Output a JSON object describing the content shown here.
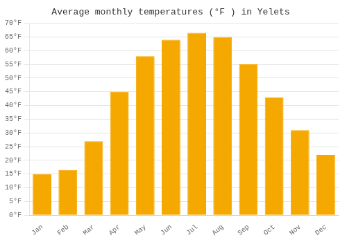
{
  "chart_data": {
    "type": "bar",
    "title": "Average monthly temperatures (°F ) in Yelets",
    "categories": [
      "Jan",
      "Feb",
      "Mar",
      "Apr",
      "May",
      "Jun",
      "Jul",
      "Aug",
      "Sep",
      "Oct",
      "Nov",
      "Dec"
    ],
    "values": [
      15,
      16.5,
      27,
      45,
      58,
      64,
      66.5,
      65,
      55,
      43,
      31,
      22
    ],
    "color": "#F5A800",
    "ylim": [
      0,
      70
    ],
    "yticks": [
      {
        "value": 0,
        "label": "0°F"
      },
      {
        "value": 5,
        "label": "5°F"
      },
      {
        "value": 10,
        "label": "10°F"
      },
      {
        "value": 15,
        "label": "15°F"
      },
      {
        "value": 20,
        "label": "20°F"
      },
      {
        "value": 25,
        "label": "25°F"
      },
      {
        "value": 30,
        "label": "30°F"
      },
      {
        "value": 35,
        "label": "35°F"
      },
      {
        "value": 40,
        "label": "40°F"
      },
      {
        "value": 45,
        "label": "45°F"
      },
      {
        "value": 50,
        "label": "50°F"
      },
      {
        "value": 55,
        "label": "55°F"
      },
      {
        "value": 60,
        "label": "60°F"
      },
      {
        "value": 65,
        "label": "65°F"
      },
      {
        "value": 70,
        "label": "70°F"
      }
    ],
    "grid": true
  }
}
